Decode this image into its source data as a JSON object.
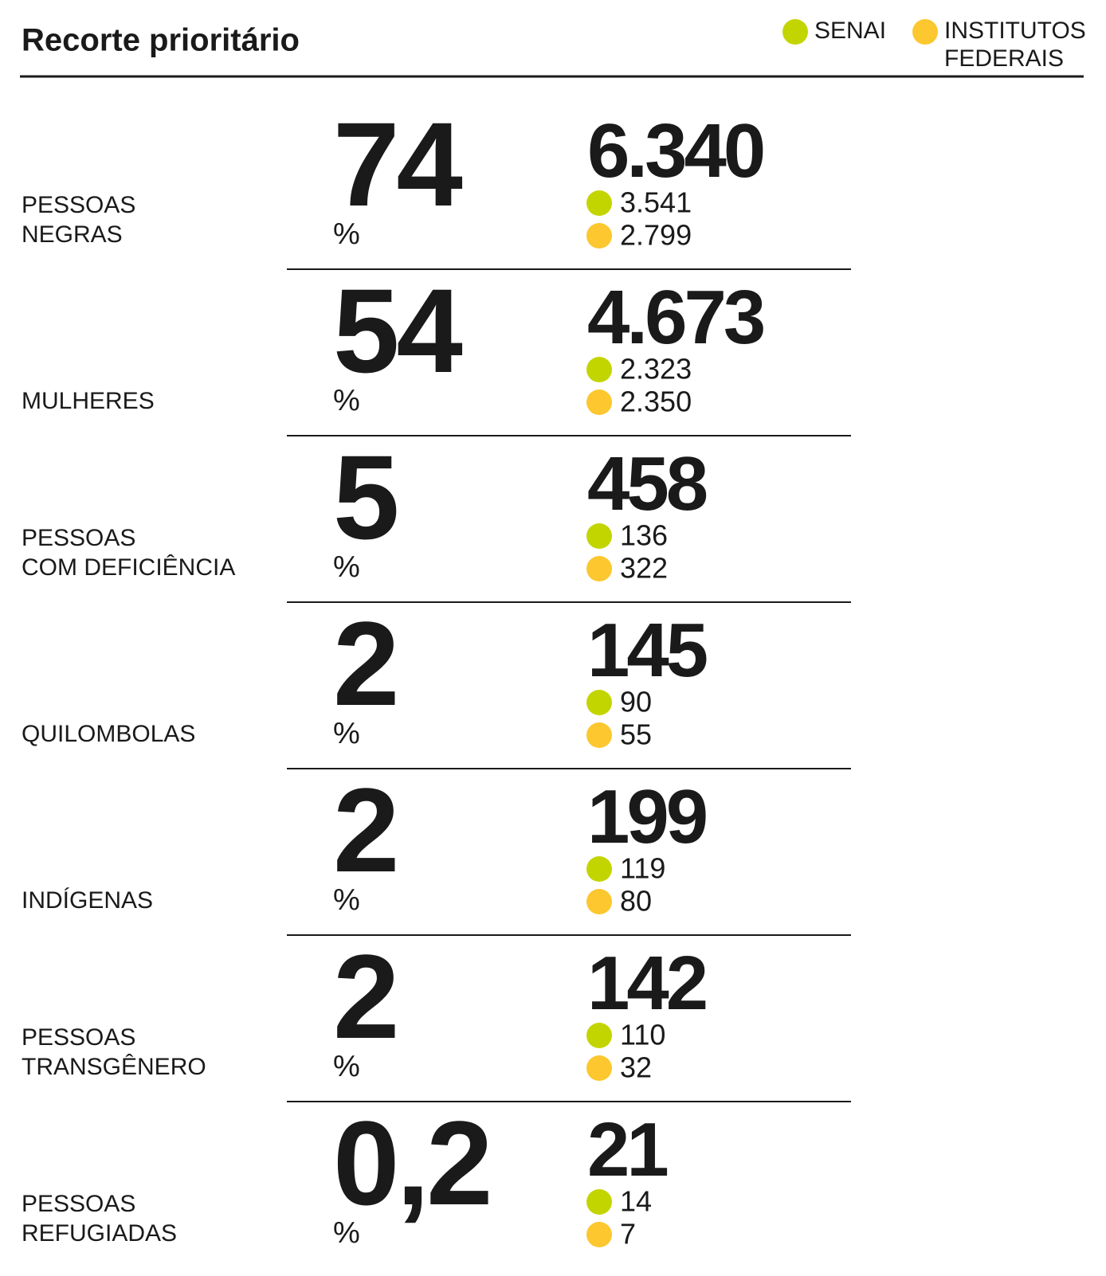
{
  "header": {
    "title": "Recorte prioritário"
  },
  "legend": [
    {
      "label": [
        "SENAI"
      ],
      "color": "#c3d500"
    },
    {
      "label": [
        "INSTITUTOS",
        "FEDERAIS"
      ],
      "color": "#fcc72f"
    }
  ],
  "rows": [
    {
      "label": [
        "PESSOAS",
        "NEGRAS"
      ],
      "percent": "74",
      "unit": "%",
      "total": "6.340",
      "senai": "3.541",
      "institutos": "2.799",
      "color": "#0a8a43"
    },
    {
      "label": [
        "MULHERES"
      ],
      "percent": "54",
      "unit": "%",
      "total": "4.673",
      "senai": "2.323",
      "institutos": "2.350",
      "color": "#0a5e91"
    },
    {
      "label": [
        "PESSOAS",
        "COM DEFICIÊNCIA"
      ],
      "percent": "5",
      "unit": "%",
      "total": "458",
      "senai": "136",
      "institutos": "322",
      "color": "#14b4a8"
    },
    {
      "label": [
        "QUILOMBOLAS"
      ],
      "percent": "2",
      "unit": "%",
      "total": "145",
      "senai": "90",
      "institutos": "55",
      "color": "#3dd4f5"
    },
    {
      "label": [
        "INDÍGENAS"
      ],
      "percent": "2",
      "unit": "%",
      "total": "199",
      "senai": "119",
      "institutos": "80",
      "color": "#fcc72f"
    },
    {
      "label": [
        "PESSOAS",
        "TRANSGÊNERO"
      ],
      "percent": "2",
      "unit": "%",
      "total": "142",
      "senai": "110",
      "institutos": "32",
      "color": "#e98a0a"
    },
    {
      "label": [
        "PESSOAS",
        "REFUGIADAS"
      ],
      "percent": "0,2",
      "unit": "%",
      "total": "21",
      "senai": "14",
      "institutos": "7",
      "color": "#c3d500"
    }
  ]
}
